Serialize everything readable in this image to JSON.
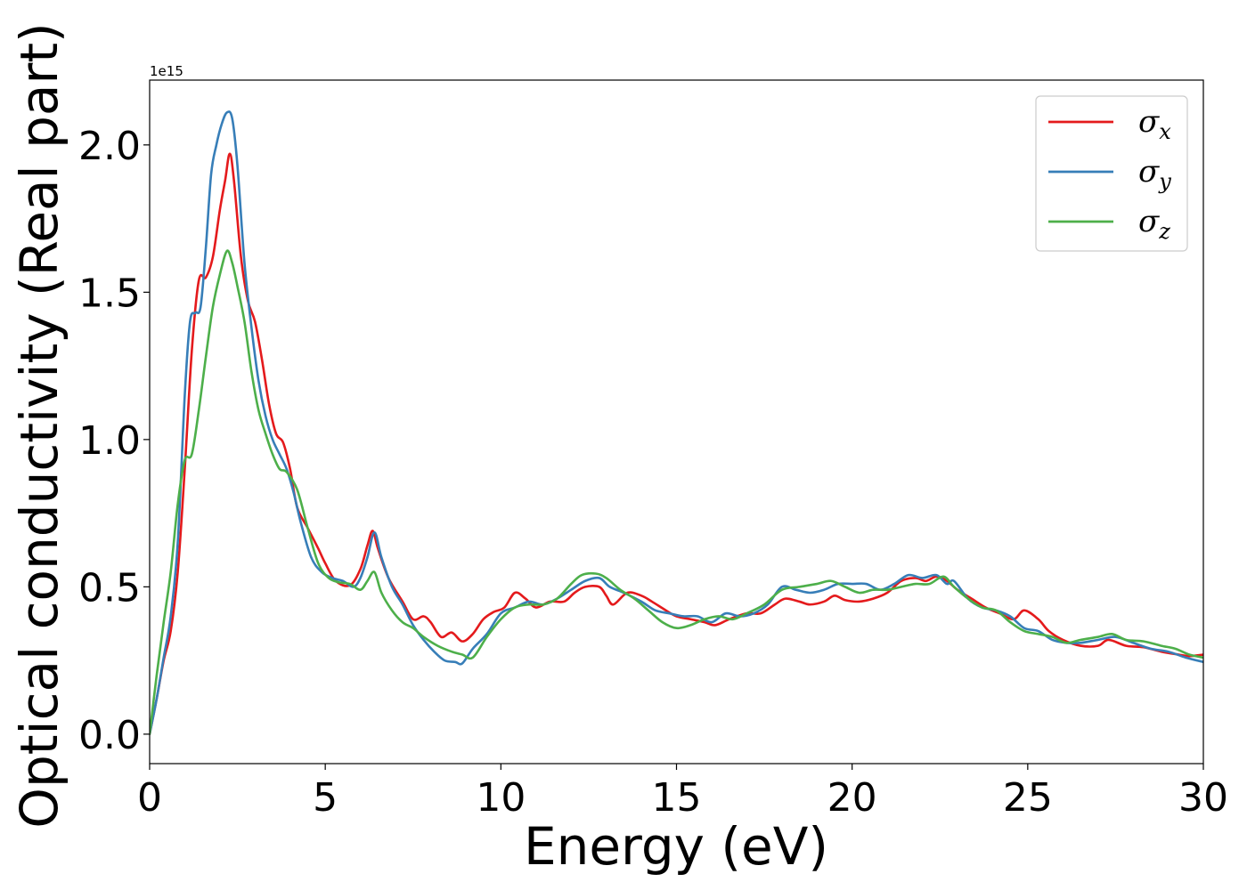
{
  "chart_data": {
    "type": "line",
    "xlabel": "Energy (eV)",
    "ylabel": "Optical conductivity (Real part)",
    "y_offset_label": "1e15",
    "xlim": [
      0,
      30
    ],
    "ylim": [
      -0.1,
      2.22
    ],
    "x_ticks": [
      "0",
      "5",
      "10",
      "15",
      "20",
      "25",
      "30"
    ],
    "y_ticks": [
      "0.0",
      "0.5",
      "1.0",
      "1.5",
      "2.0"
    ],
    "grid": false,
    "legend_position": "top-right",
    "series": [
      {
        "name": "σx",
        "symbol": "σ",
        "subscript": "x",
        "color": "#e41a1c",
        "points": [
          [
            0,
            0.0
          ],
          [
            0.2,
            0.12
          ],
          [
            0.4,
            0.25
          ],
          [
            0.6,
            0.35
          ],
          [
            0.8,
            0.55
          ],
          [
            1.0,
            0.9
          ],
          [
            1.2,
            1.3
          ],
          [
            1.4,
            1.54
          ],
          [
            1.6,
            1.55
          ],
          [
            1.8,
            1.62
          ],
          [
            2.0,
            1.78
          ],
          [
            2.15,
            1.88
          ],
          [
            2.28,
            1.97
          ],
          [
            2.4,
            1.88
          ],
          [
            2.6,
            1.62
          ],
          [
            2.8,
            1.47
          ],
          [
            3.0,
            1.4
          ],
          [
            3.2,
            1.27
          ],
          [
            3.4,
            1.12
          ],
          [
            3.6,
            1.02
          ],
          [
            3.8,
            0.99
          ],
          [
            4.0,
            0.9
          ],
          [
            4.2,
            0.77
          ],
          [
            4.5,
            0.7
          ],
          [
            4.8,
            0.63
          ],
          [
            5.0,
            0.58
          ],
          [
            5.3,
            0.52
          ],
          [
            5.7,
            0.505
          ],
          [
            6.0,
            0.56
          ],
          [
            6.2,
            0.64
          ],
          [
            6.35,
            0.69
          ],
          [
            6.5,
            0.63
          ],
          [
            6.8,
            0.53
          ],
          [
            7.2,
            0.45
          ],
          [
            7.5,
            0.39
          ],
          [
            7.8,
            0.4
          ],
          [
            8.0,
            0.38
          ],
          [
            8.3,
            0.33
          ],
          [
            8.6,
            0.345
          ],
          [
            8.9,
            0.315
          ],
          [
            9.2,
            0.34
          ],
          [
            9.5,
            0.39
          ],
          [
            9.8,
            0.415
          ],
          [
            10.1,
            0.43
          ],
          [
            10.4,
            0.48
          ],
          [
            10.7,
            0.46
          ],
          [
            11.0,
            0.43
          ],
          [
            11.4,
            0.45
          ],
          [
            11.8,
            0.45
          ],
          [
            12.1,
            0.48
          ],
          [
            12.4,
            0.5
          ],
          [
            12.8,
            0.5
          ],
          [
            13.0,
            0.47
          ],
          [
            13.2,
            0.44
          ],
          [
            13.6,
            0.48
          ],
          [
            14.0,
            0.47
          ],
          [
            14.3,
            0.45
          ],
          [
            14.7,
            0.42
          ],
          [
            15.0,
            0.4
          ],
          [
            15.4,
            0.39
          ],
          [
            15.8,
            0.38
          ],
          [
            16.1,
            0.37
          ],
          [
            16.5,
            0.39
          ],
          [
            17.0,
            0.41
          ],
          [
            17.4,
            0.41
          ],
          [
            17.8,
            0.44
          ],
          [
            18.1,
            0.46
          ],
          [
            18.5,
            0.45
          ],
          [
            18.8,
            0.44
          ],
          [
            19.2,
            0.45
          ],
          [
            19.5,
            0.47
          ],
          [
            19.8,
            0.455
          ],
          [
            20.2,
            0.45
          ],
          [
            20.6,
            0.46
          ],
          [
            21.0,
            0.48
          ],
          [
            21.4,
            0.52
          ],
          [
            21.8,
            0.53
          ],
          [
            22.1,
            0.52
          ],
          [
            22.4,
            0.535
          ],
          [
            22.7,
            0.52
          ],
          [
            23.0,
            0.49
          ],
          [
            23.4,
            0.46
          ],
          [
            23.8,
            0.43
          ],
          [
            24.2,
            0.41
          ],
          [
            24.6,
            0.39
          ],
          [
            24.9,
            0.42
          ],
          [
            25.3,
            0.39
          ],
          [
            25.6,
            0.35
          ],
          [
            26.0,
            0.32
          ],
          [
            26.5,
            0.3
          ],
          [
            27.0,
            0.3
          ],
          [
            27.3,
            0.32
          ],
          [
            27.8,
            0.3
          ],
          [
            28.3,
            0.295
          ],
          [
            28.8,
            0.28
          ],
          [
            29.3,
            0.27
          ],
          [
            29.6,
            0.265
          ],
          [
            30,
            0.27
          ]
        ]
      },
      {
        "name": "σy",
        "symbol": "σ",
        "subscript": "y",
        "color": "#377eb8",
        "points": [
          [
            0,
            0.0
          ],
          [
            0.2,
            0.12
          ],
          [
            0.4,
            0.26
          ],
          [
            0.6,
            0.4
          ],
          [
            0.8,
            0.65
          ],
          [
            1.0,
            1.15
          ],
          [
            1.15,
            1.4
          ],
          [
            1.3,
            1.43
          ],
          [
            1.45,
            1.45
          ],
          [
            1.6,
            1.65
          ],
          [
            1.75,
            1.9
          ],
          [
            1.9,
            2.0
          ],
          [
            2.05,
            2.07
          ],
          [
            2.2,
            2.11
          ],
          [
            2.35,
            2.09
          ],
          [
            2.5,
            1.93
          ],
          [
            2.7,
            1.6
          ],
          [
            2.9,
            1.38
          ],
          [
            3.1,
            1.2
          ],
          [
            3.3,
            1.08
          ],
          [
            3.5,
            1.0
          ],
          [
            3.7,
            0.95
          ],
          [
            3.9,
            0.9
          ],
          [
            4.1,
            0.82
          ],
          [
            4.3,
            0.72
          ],
          [
            4.6,
            0.6
          ],
          [
            4.9,
            0.55
          ],
          [
            5.2,
            0.53
          ],
          [
            5.5,
            0.52
          ],
          [
            5.8,
            0.5
          ],
          [
            6.0,
            0.53
          ],
          [
            6.2,
            0.6
          ],
          [
            6.4,
            0.685
          ],
          [
            6.6,
            0.6
          ],
          [
            6.9,
            0.5
          ],
          [
            7.2,
            0.44
          ],
          [
            7.5,
            0.37
          ],
          [
            7.8,
            0.32
          ],
          [
            8.1,
            0.28
          ],
          [
            8.4,
            0.25
          ],
          [
            8.7,
            0.245
          ],
          [
            8.9,
            0.24
          ],
          [
            9.2,
            0.29
          ],
          [
            9.6,
            0.34
          ],
          [
            10.0,
            0.41
          ],
          [
            10.4,
            0.43
          ],
          [
            10.8,
            0.45
          ],
          [
            11.2,
            0.44
          ],
          [
            11.6,
            0.46
          ],
          [
            12.0,
            0.49
          ],
          [
            12.4,
            0.52
          ],
          [
            12.8,
            0.53
          ],
          [
            13.1,
            0.5
          ],
          [
            13.5,
            0.48
          ],
          [
            14.0,
            0.45
          ],
          [
            14.4,
            0.42
          ],
          [
            14.8,
            0.41
          ],
          [
            15.2,
            0.4
          ],
          [
            15.6,
            0.4
          ],
          [
            16.0,
            0.38
          ],
          [
            16.4,
            0.41
          ],
          [
            16.8,
            0.4
          ],
          [
            17.2,
            0.41
          ],
          [
            17.6,
            0.44
          ],
          [
            18.0,
            0.5
          ],
          [
            18.4,
            0.49
          ],
          [
            18.8,
            0.48
          ],
          [
            19.2,
            0.49
          ],
          [
            19.6,
            0.51
          ],
          [
            20.0,
            0.51
          ],
          [
            20.4,
            0.51
          ],
          [
            20.8,
            0.49
          ],
          [
            21.2,
            0.51
          ],
          [
            21.6,
            0.54
          ],
          [
            22.0,
            0.53
          ],
          [
            22.4,
            0.54
          ],
          [
            22.7,
            0.51
          ],
          [
            22.9,
            0.52
          ],
          [
            23.3,
            0.46
          ],
          [
            23.7,
            0.43
          ],
          [
            24.1,
            0.42
          ],
          [
            24.5,
            0.4
          ],
          [
            24.9,
            0.36
          ],
          [
            25.3,
            0.35
          ],
          [
            25.7,
            0.32
          ],
          [
            26.1,
            0.31
          ],
          [
            26.5,
            0.31
          ],
          [
            27.0,
            0.32
          ],
          [
            27.5,
            0.33
          ],
          [
            28.0,
            0.31
          ],
          [
            28.5,
            0.29
          ],
          [
            29.0,
            0.28
          ],
          [
            29.5,
            0.26
          ],
          [
            30,
            0.245
          ]
        ]
      },
      {
        "name": "σz",
        "symbol": "σ",
        "subscript": "z",
        "color": "#4daf4a",
        "points": [
          [
            0,
            0.0
          ],
          [
            0.2,
            0.2
          ],
          [
            0.4,
            0.38
          ],
          [
            0.6,
            0.55
          ],
          [
            0.8,
            0.78
          ],
          [
            1.0,
            0.93
          ],
          [
            1.2,
            0.95
          ],
          [
            1.4,
            1.1
          ],
          [
            1.6,
            1.28
          ],
          [
            1.8,
            1.45
          ],
          [
            2.0,
            1.56
          ],
          [
            2.2,
            1.64
          ],
          [
            2.35,
            1.6
          ],
          [
            2.5,
            1.52
          ],
          [
            2.7,
            1.4
          ],
          [
            2.9,
            1.23
          ],
          [
            3.1,
            1.1
          ],
          [
            3.3,
            1.02
          ],
          [
            3.5,
            0.95
          ],
          [
            3.7,
            0.9
          ],
          [
            3.9,
            0.89
          ],
          [
            4.2,
            0.83
          ],
          [
            4.5,
            0.7
          ],
          [
            4.8,
            0.58
          ],
          [
            5.1,
            0.53
          ],
          [
            5.4,
            0.515
          ],
          [
            5.7,
            0.51
          ],
          [
            6.0,
            0.49
          ],
          [
            6.2,
            0.52
          ],
          [
            6.4,
            0.55
          ],
          [
            6.6,
            0.48
          ],
          [
            6.9,
            0.42
          ],
          [
            7.2,
            0.38
          ],
          [
            7.5,
            0.36
          ],
          [
            7.8,
            0.33
          ],
          [
            8.2,
            0.3
          ],
          [
            8.6,
            0.28
          ],
          [
            8.9,
            0.27
          ],
          [
            9.2,
            0.26
          ],
          [
            9.6,
            0.33
          ],
          [
            10.0,
            0.39
          ],
          [
            10.4,
            0.43
          ],
          [
            10.8,
            0.44
          ],
          [
            11.2,
            0.44
          ],
          [
            11.6,
            0.46
          ],
          [
            12.0,
            0.51
          ],
          [
            12.3,
            0.54
          ],
          [
            12.7,
            0.545
          ],
          [
            13.0,
            0.53
          ],
          [
            13.4,
            0.49
          ],
          [
            13.8,
            0.46
          ],
          [
            14.2,
            0.42
          ],
          [
            14.6,
            0.38
          ],
          [
            15.0,
            0.36
          ],
          [
            15.4,
            0.37
          ],
          [
            15.8,
            0.39
          ],
          [
            16.2,
            0.4
          ],
          [
            16.6,
            0.39
          ],
          [
            17.0,
            0.41
          ],
          [
            17.5,
            0.44
          ],
          [
            18.0,
            0.49
          ],
          [
            18.5,
            0.5
          ],
          [
            19.0,
            0.51
          ],
          [
            19.4,
            0.52
          ],
          [
            19.8,
            0.5
          ],
          [
            20.2,
            0.48
          ],
          [
            20.6,
            0.49
          ],
          [
            21.0,
            0.49
          ],
          [
            21.4,
            0.5
          ],
          [
            21.8,
            0.51
          ],
          [
            22.2,
            0.51
          ],
          [
            22.6,
            0.535
          ],
          [
            22.9,
            0.5
          ],
          [
            23.3,
            0.46
          ],
          [
            23.7,
            0.43
          ],
          [
            24.1,
            0.42
          ],
          [
            24.5,
            0.38
          ],
          [
            24.9,
            0.35
          ],
          [
            25.3,
            0.34
          ],
          [
            25.7,
            0.33
          ],
          [
            26.1,
            0.31
          ],
          [
            26.5,
            0.32
          ],
          [
            27.0,
            0.33
          ],
          [
            27.4,
            0.34
          ],
          [
            27.8,
            0.32
          ],
          [
            28.3,
            0.315
          ],
          [
            28.8,
            0.3
          ],
          [
            29.2,
            0.29
          ],
          [
            29.6,
            0.27
          ],
          [
            30,
            0.26
          ]
        ]
      }
    ]
  }
}
